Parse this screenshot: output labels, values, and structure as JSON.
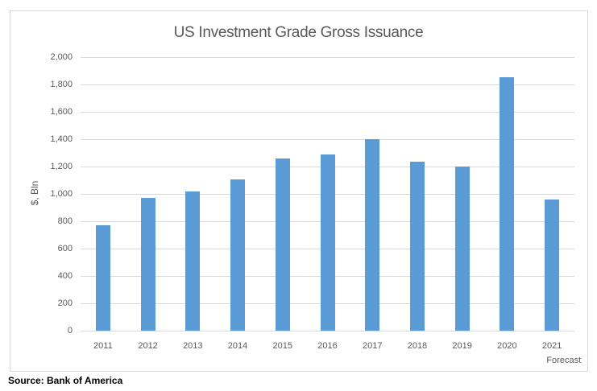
{
  "chart_data": {
    "type": "bar",
    "title": "US Investment Grade Gross Issuance",
    "xlabel": "",
    "ylabel": "$, Bln",
    "categories": [
      "2011",
      "2012",
      "2013",
      "2014",
      "2015",
      "2016",
      "2017",
      "2018",
      "2019",
      "2020",
      "2021 Forecast"
    ],
    "category_labels": [
      [
        "2011"
      ],
      [
        "2012"
      ],
      [
        "2013"
      ],
      [
        "2014"
      ],
      [
        "2015"
      ],
      [
        "2016"
      ],
      [
        "2017"
      ],
      [
        "2018"
      ],
      [
        "2019"
      ],
      [
        "2020"
      ],
      [
        "2021",
        "Forecast"
      ]
    ],
    "values": [
      770,
      970,
      1020,
      1105,
      1260,
      1290,
      1400,
      1235,
      1200,
      1855,
      960
    ],
    "ylim": [
      0,
      2000
    ],
    "yticks": [
      0,
      200,
      400,
      600,
      800,
      1000,
      1200,
      1400,
      1600,
      1800,
      2000
    ],
    "ytick_labels": [
      "0",
      "200",
      "400",
      "600",
      "800",
      "1,000",
      "1,200",
      "1,400",
      "1,600",
      "1,800",
      "2,000"
    ],
    "grid": true,
    "legend": null,
    "bar_color": "#5B9BD5"
  },
  "source": "Source: Bank of America"
}
